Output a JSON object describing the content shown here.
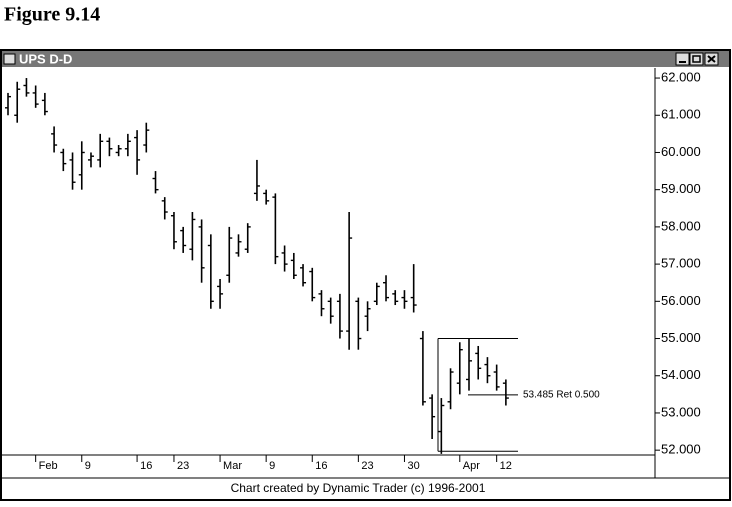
{
  "figure_label": "Figure 9.14",
  "window": {
    "title": "UPS D-D",
    "footer": "Chart created by Dynamic Trader (c) 1996-2001"
  },
  "chart_data": {
    "type": "ohlc",
    "color": "#000000",
    "categories": [
      null,
      null,
      null,
      "Feb",
      null,
      null,
      null,
      null,
      "9",
      null,
      null,
      null,
      null,
      null,
      "16",
      null,
      null,
      null,
      "23",
      null,
      null,
      null,
      null,
      "Mar",
      null,
      null,
      null,
      null,
      "9",
      null,
      null,
      null,
      null,
      "16",
      null,
      null,
      null,
      null,
      "23",
      null,
      null,
      null,
      null,
      "30",
      null,
      null,
      null,
      null,
      null,
      "Apr",
      null,
      null,
      null,
      "12",
      null
    ],
    "high": [
      61.6,
      61.9,
      62.0,
      61.8,
      61.6,
      60.7,
      60.1,
      60.0,
      60.3,
      60.0,
      60.5,
      60.4,
      60.2,
      60.5,
      60.6,
      60.8,
      59.5,
      58.8,
      58.4,
      58.0,
      58.4,
      58.2,
      57.8,
      56.6,
      58.0,
      57.8,
      58.1,
      59.8,
      59.0,
      58.9,
      57.5,
      57.3,
      57.0,
      56.9,
      56.3,
      56.1,
      56.2,
      58.4,
      56.1,
      56.0,
      56.5,
      56.7,
      56.3,
      56.3,
      57.0,
      55.2,
      53.5,
      53.4,
      54.2,
      54.9,
      55.0,
      54.8,
      54.5,
      54.3,
      53.9
    ],
    "low": [
      61.0,
      60.8,
      61.5,
      61.2,
      61.0,
      60.0,
      59.5,
      59.0,
      59.0,
      59.6,
      59.6,
      59.9,
      59.9,
      59.9,
      59.4,
      60.0,
      58.9,
      58.2,
      57.4,
      57.3,
      57.1,
      56.5,
      55.8,
      55.8,
      56.5,
      57.2,
      57.3,
      58.7,
      58.6,
      57.0,
      56.8,
      56.6,
      56.4,
      56.0,
      55.6,
      55.4,
      55.0,
      54.7,
      54.7,
      55.2,
      55.9,
      56.0,
      55.9,
      55.8,
      55.7,
      53.2,
      52.3,
      51.9,
      53.1,
      53.5,
      53.6,
      53.9,
      53.8,
      53.6,
      53.2
    ],
    "open": [
      61.2,
      61.0,
      61.8,
      61.6,
      61.4,
      60.5,
      60.0,
      59.8,
      59.4,
      59.8,
      59.8,
      60.3,
      60.0,
      60.1,
      60.4,
      60.2,
      59.3,
      58.7,
      58.3,
      57.9,
      57.4,
      58.0,
      57.5,
      56.4,
      56.7,
      57.3,
      57.4,
      58.9,
      58.9,
      58.8,
      57.3,
      57.1,
      56.9,
      56.8,
      56.2,
      56.0,
      56.0,
      55.2,
      56.0,
      55.6,
      56.0,
      56.5,
      56.2,
      56.1,
      56.1,
      55.0,
      53.4,
      52.5,
      53.3,
      53.8,
      53.9,
      54.6,
      54.3,
      54.1,
      53.8
    ],
    "close": [
      61.5,
      61.7,
      61.6,
      61.3,
      61.1,
      60.2,
      59.7,
      59.2,
      60.0,
      59.9,
      60.3,
      60.1,
      60.1,
      60.3,
      59.8,
      60.6,
      59.0,
      58.4,
      57.6,
      57.5,
      58.2,
      56.9,
      56.0,
      56.2,
      57.7,
      57.6,
      58.0,
      59.1,
      58.7,
      57.2,
      57.0,
      56.7,
      56.5,
      56.1,
      55.8,
      55.6,
      55.2,
      57.7,
      55.0,
      55.8,
      56.4,
      56.1,
      56.0,
      56.0,
      55.9,
      53.3,
      52.9,
      53.2,
      54.1,
      54.7,
      54.4,
      54.2,
      54.0,
      53.7,
      53.4
    ],
    "ylim": [
      51.87,
      62.27
    ],
    "yticks": [
      {
        "value": 52,
        "label": "52.000"
      },
      {
        "value": 53,
        "label": "53.000"
      },
      {
        "value": 54,
        "label": "54.000"
      },
      {
        "value": 55,
        "label": "55.000"
      },
      {
        "value": 56,
        "label": "56.000"
      },
      {
        "value": 57,
        "label": "57.000"
      },
      {
        "value": 58,
        "label": "58.000"
      },
      {
        "value": 59,
        "label": "59.000"
      },
      {
        "value": 60,
        "label": "60.000"
      },
      {
        "value": 61,
        "label": "61.000"
      },
      {
        "value": 62,
        "label": "62.000"
      }
    ],
    "retracement": {
      "high": 55.0,
      "low": 51.97,
      "level": 53.485,
      "label": "53.485 Ret 0.500"
    }
  }
}
